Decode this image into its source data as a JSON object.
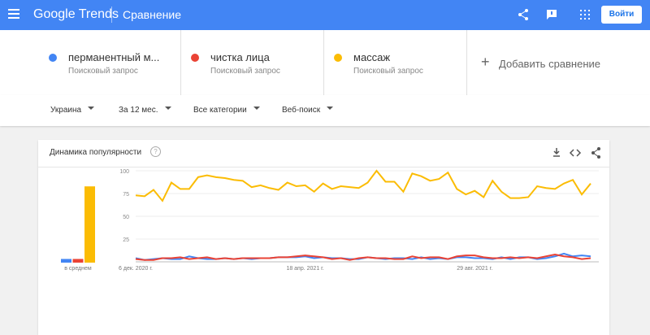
{
  "header": {
    "logo": "Google Trends",
    "section": "Сравнение",
    "sign_in": "Войти"
  },
  "terms": [
    {
      "subtitle": "Поисковый запрос"
    },
    {
      "subtitle": "Поисковый запрос"
    },
    {
      "subtitle": "Поисковый запрос"
    }
  ],
  "add_comparison": "Добавить сравнение",
  "filters": [
    "Украина",
    "За 12 мес.",
    "Все категории",
    "Веб-поиск"
  ],
  "card": {
    "title": "Динамика популярности"
  },
  "chart_data": [
    {
      "type": "bar",
      "categories": [
        "в среднем"
      ],
      "ylim": [
        0,
        100
      ],
      "series": [
        {
          "color": "#4285f4",
          "values": [
            4
          ]
        },
        {
          "color": "#ea4335",
          "values": [
            4
          ]
        },
        {
          "color": "#fbbc04",
          "values": [
            83
          ]
        }
      ]
    },
    {
      "type": "line",
      "ylim": [
        0,
        100
      ],
      "yticks": [
        25,
        50,
        75,
        100
      ],
      "grid": true,
      "categories": [
        "6 дек. 2020 г.",
        null,
        null,
        null,
        null,
        null,
        null,
        null,
        null,
        null,
        null,
        null,
        null,
        null,
        null,
        null,
        null,
        null,
        null,
        "18 апр. 2021 г.",
        null,
        null,
        null,
        null,
        null,
        null,
        null,
        null,
        null,
        null,
        null,
        null,
        null,
        null,
        null,
        null,
        null,
        null,
        "29 авг. 2021 г.",
        null,
        null,
        null,
        null,
        null,
        null,
        null,
        null,
        null,
        null,
        null,
        null,
        null
      ],
      "series": [
        {
          "name": "перманентный м...",
          "color": "#4285f4",
          "values": [
            4,
            2,
            3,
            4,
            3,
            3,
            6,
            4,
            3,
            3,
            4,
            3,
            4,
            3,
            4,
            4,
            5,
            5,
            5,
            6,
            4,
            5,
            4,
            4,
            3,
            3,
            5,
            4,
            3,
            4,
            4,
            3,
            5,
            3,
            4,
            3,
            5,
            5,
            4,
            4,
            3,
            5,
            3,
            5,
            5,
            3,
            4,
            6,
            9,
            6,
            7,
            6
          ]
        },
        {
          "name": "чистка лица",
          "color": "#ea4335",
          "values": [
            3,
            2,
            2,
            4,
            4,
            5,
            3,
            4,
            5,
            3,
            4,
            3,
            4,
            4,
            4,
            4,
            5,
            5,
            6,
            7,
            6,
            5,
            3,
            4,
            2,
            4,
            5,
            4,
            4,
            3,
            3,
            6,
            4,
            5,
            5,
            3,
            6,
            7,
            7,
            5,
            4,
            4,
            5,
            4,
            5,
            4,
            6,
            8,
            6,
            5,
            3,
            4
          ]
        },
        {
          "name": "массаж",
          "color": "#fbbc04",
          "values": [
            73,
            72,
            79,
            67,
            87,
            80,
            80,
            93,
            95,
            93,
            92,
            90,
            89,
            82,
            84,
            81,
            79,
            87,
            83,
            84,
            77,
            86,
            80,
            83,
            82,
            81,
            87,
            100,
            88,
            88,
            77,
            97,
            94,
            89,
            91,
            98,
            80,
            74,
            78,
            71,
            89,
            77,
            70,
            70,
            71,
            83,
            81,
            80,
            86,
            90,
            74,
            86
          ]
        }
      ]
    }
  ]
}
